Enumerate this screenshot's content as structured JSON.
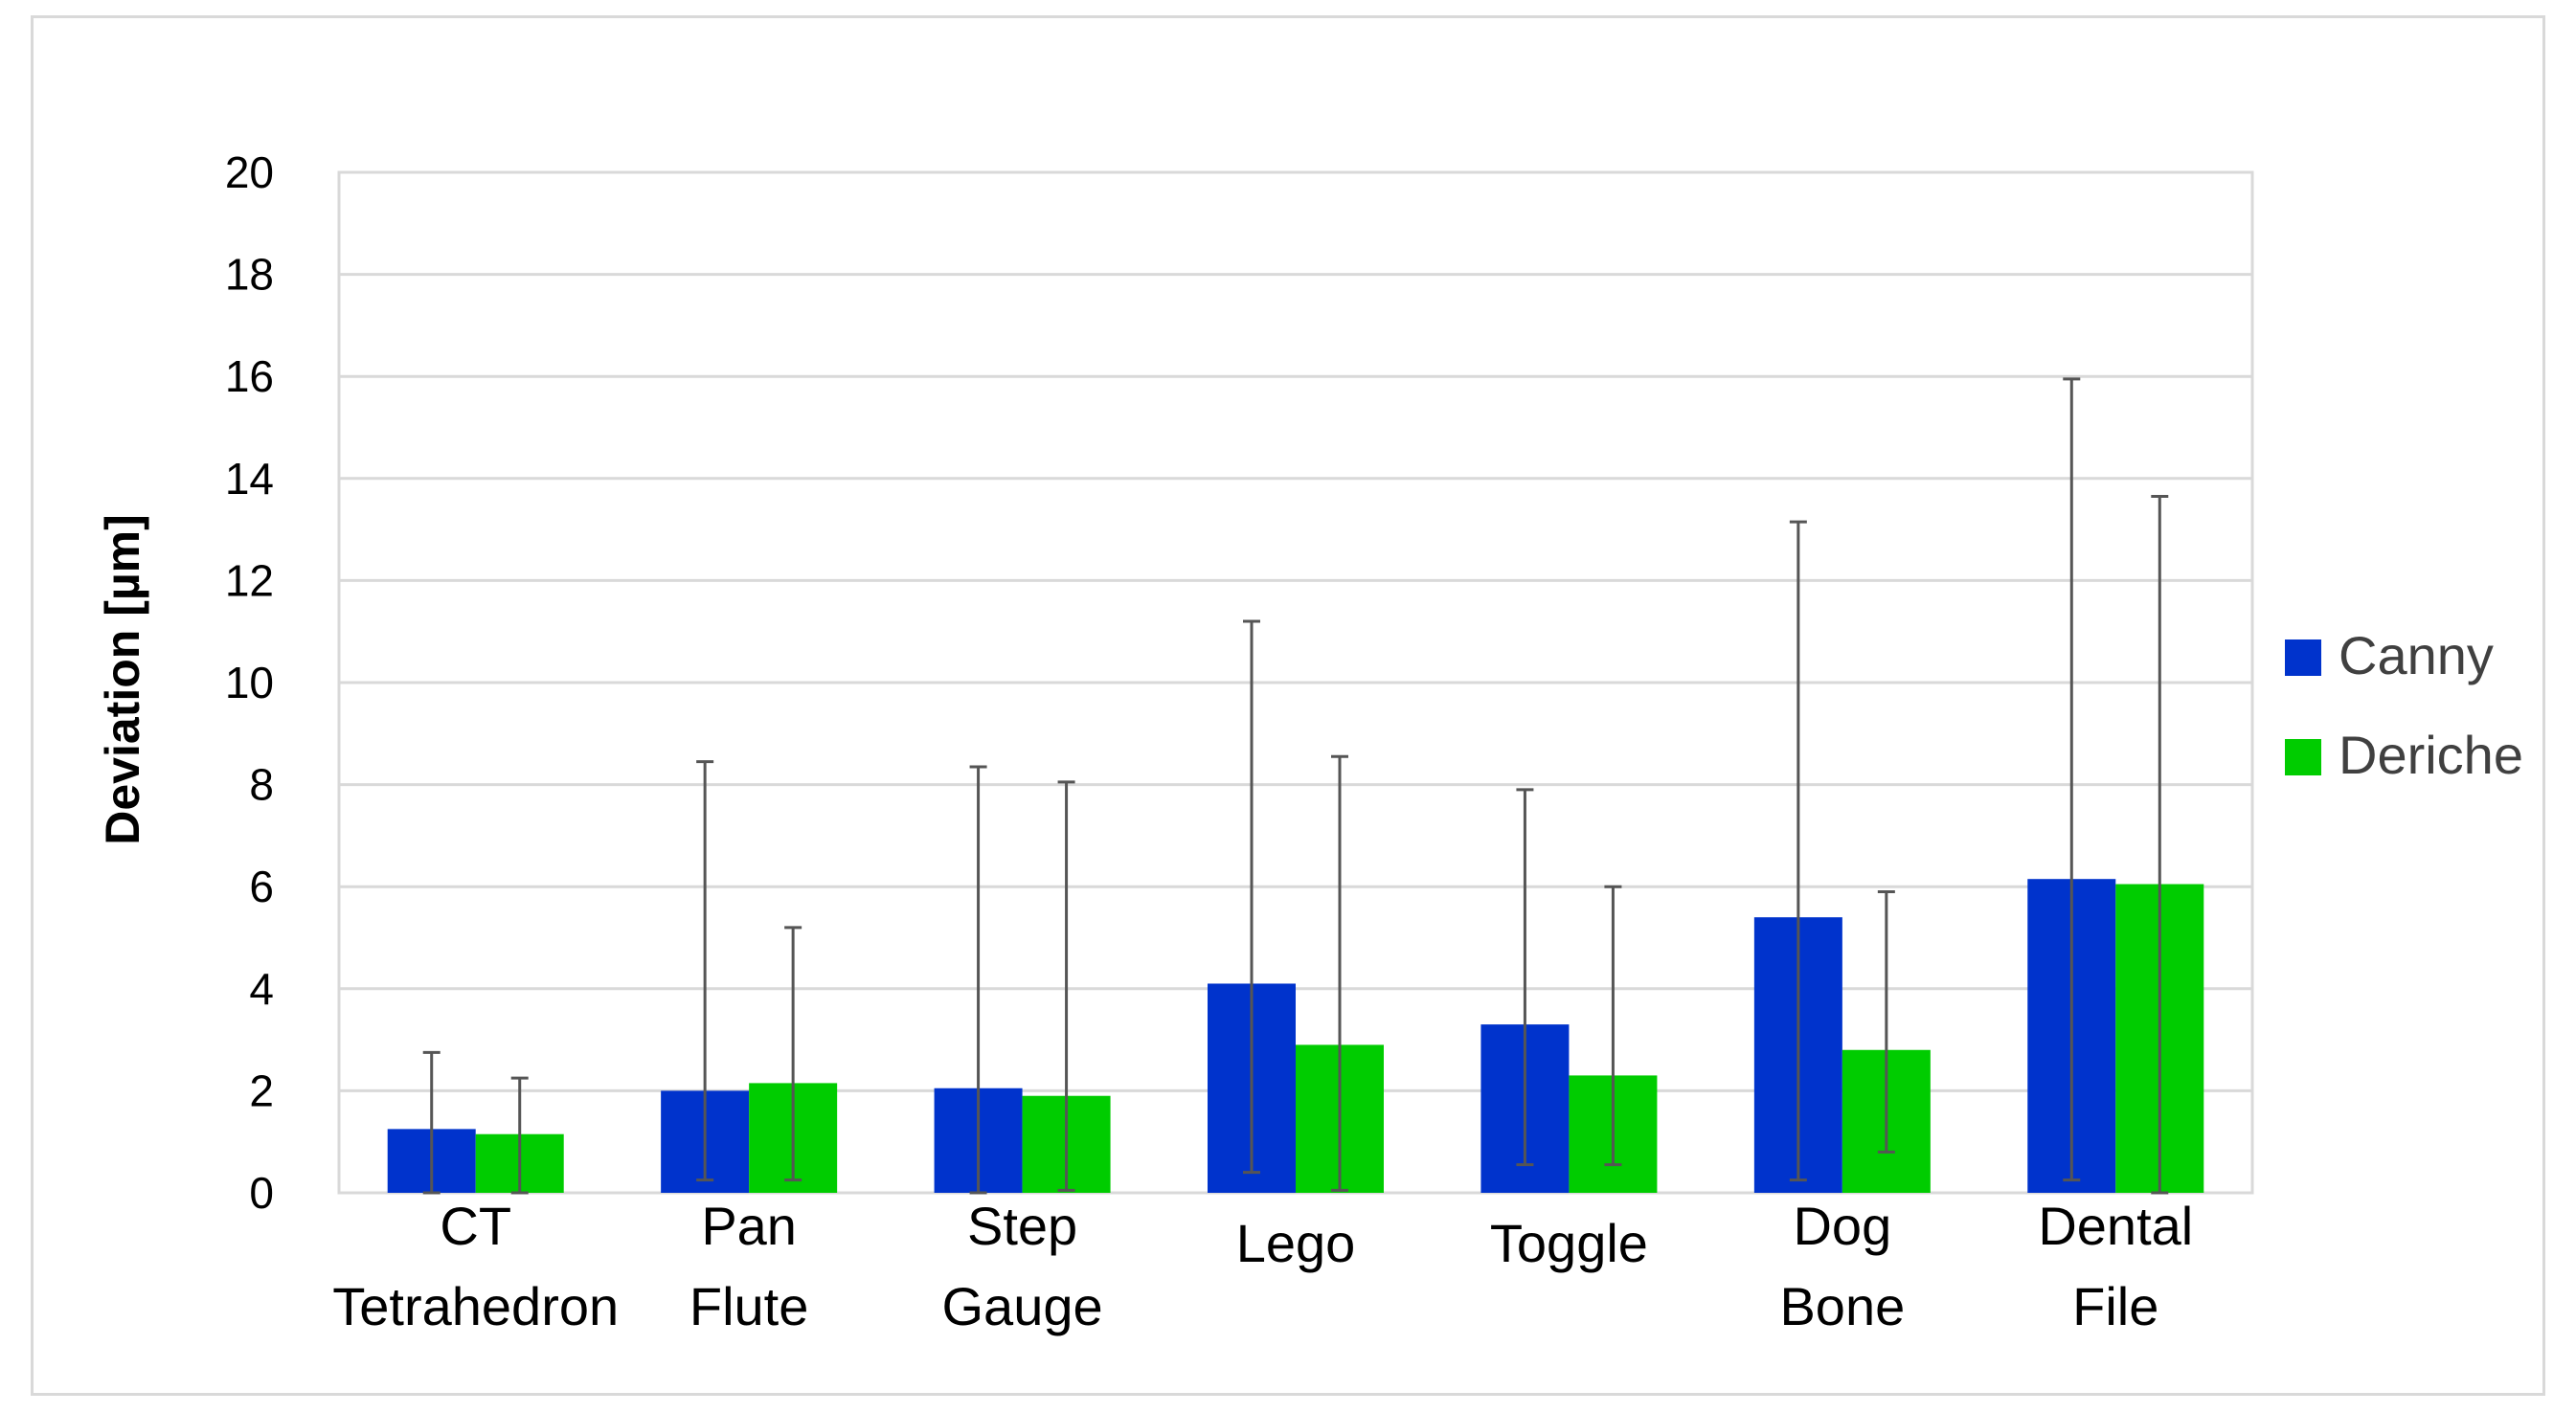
{
  "chart_data": {
    "type": "bar",
    "title": "",
    "xlabel": "",
    "ylabel": "Deviation [µm]",
    "ylim": [
      0,
      20
    ],
    "yticks": [
      0,
      2,
      4,
      6,
      8,
      10,
      12,
      14,
      16,
      18,
      20
    ],
    "grid": true,
    "legend_position": "right",
    "categories": [
      [
        "CT",
        "Tetrahedron"
      ],
      [
        "Pan",
        "Flute"
      ],
      [
        "Step",
        "Gauge"
      ],
      [
        "Lego"
      ],
      [
        "Toggle"
      ],
      [
        "Dog",
        "Bone"
      ],
      [
        "Dental",
        "File"
      ]
    ],
    "series": [
      {
        "name": "Canny",
        "color": "#0033cc",
        "values": [
          1.25,
          2.0,
          2.05,
          4.1,
          3.3,
          5.4,
          6.15
        ],
        "error_low": [
          0.0,
          0.25,
          0.0,
          0.4,
          0.55,
          0.25,
          0.25
        ],
        "error_high": [
          2.75,
          8.45,
          8.35,
          11.2,
          7.9,
          13.15,
          15.95
        ]
      },
      {
        "name": "Deriche",
        "color": "#00cc00",
        "values": [
          1.15,
          2.15,
          1.9,
          2.9,
          2.3,
          2.8,
          6.05
        ],
        "error_low": [
          0.0,
          0.25,
          0.05,
          0.05,
          0.55,
          0.8,
          0.0
        ],
        "error_high": [
          2.25,
          5.2,
          8.05,
          8.55,
          6.0,
          5.9,
          13.65
        ]
      }
    ]
  }
}
